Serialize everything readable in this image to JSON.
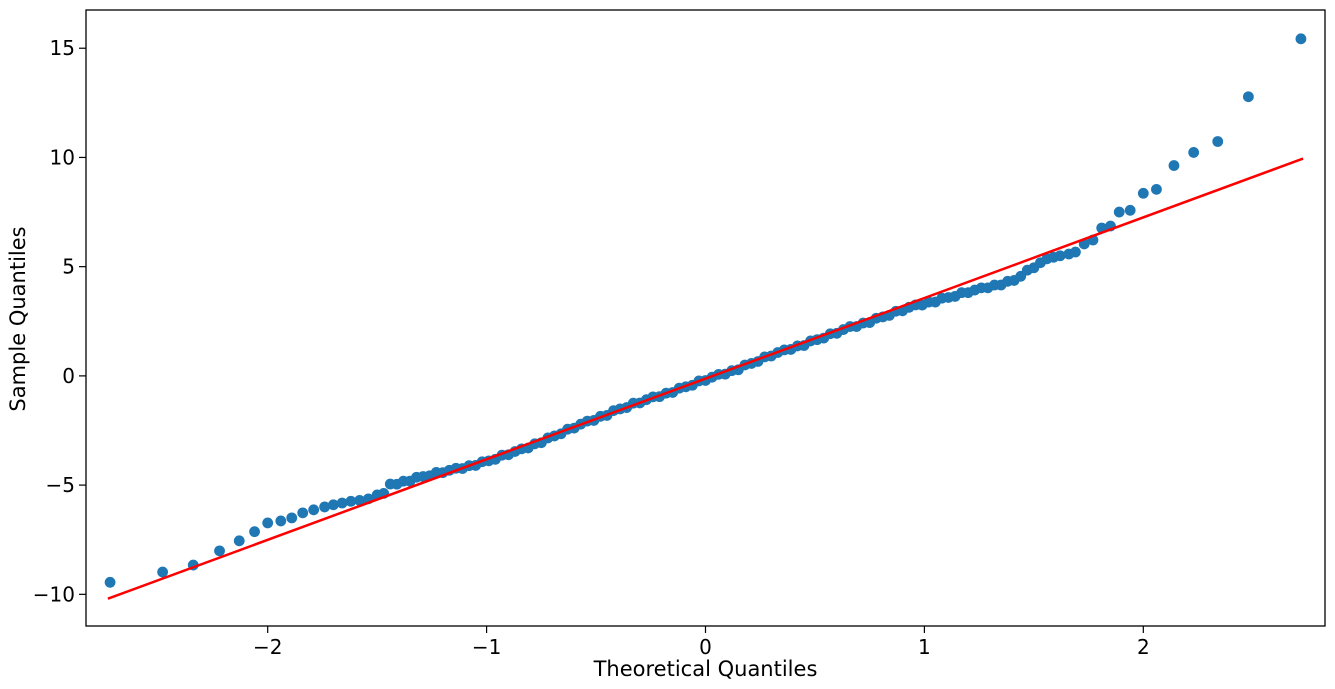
{
  "figure": {
    "background": "#ffffff"
  },
  "chart_data": {
    "type": "scatter",
    "title": "",
    "xlabel": "Theoretical Quantiles",
    "ylabel": "Sample Quantiles",
    "xlim": [
      -2.83,
      2.83
    ],
    "ylim": [
      -11.45,
      16.75
    ],
    "grid": false,
    "legend": "none",
    "xticks": {
      "values": [
        -2,
        -1,
        0,
        1,
        2
      ],
      "labels": [
        "−2",
        "−1",
        "0",
        "1",
        "2"
      ]
    },
    "yticks": {
      "values": [
        -10,
        -5,
        0,
        5,
        10,
        15
      ],
      "labels": [
        "−10",
        "−5",
        "0",
        "5",
        "10",
        "15"
      ]
    },
    "colors": {
      "marker": "#1f77b4",
      "reference_line": "#ff0000",
      "axis": "#000000"
    },
    "reference_line": {
      "x1": -2.73,
      "y1": -10.2,
      "x2": 2.73,
      "y2": 9.95,
      "width": 2.5
    },
    "series": [
      {
        "name": "sample-quantiles-vs-theoretical",
        "type": "scatter",
        "color": "#1f77b4",
        "marker_radius": 5.4,
        "points": [
          [
            -2.72,
            -9.45
          ],
          [
            -2.48,
            -8.98
          ],
          [
            -2.34,
            -8.66
          ],
          [
            -2.22,
            -8.01
          ],
          [
            -2.13,
            -7.55
          ],
          [
            -2.06,
            -7.13
          ],
          [
            -2.0,
            -6.73
          ],
          [
            -1.94,
            -6.64
          ],
          [
            -1.89,
            -6.5
          ],
          [
            -1.84,
            -6.27
          ],
          [
            -1.79,
            -6.13
          ],
          [
            -1.74,
            -6.0
          ],
          [
            -1.7,
            -5.9
          ],
          [
            -1.66,
            -5.82
          ],
          [
            -1.62,
            -5.74
          ],
          [
            -1.58,
            -5.7
          ],
          [
            -1.54,
            -5.63
          ],
          [
            -1.5,
            -5.45
          ],
          [
            -1.47,
            -5.38
          ],
          [
            -1.44,
            -4.95
          ],
          [
            -1.41,
            -4.96
          ],
          [
            -1.38,
            -4.82
          ],
          [
            -1.35,
            -4.82
          ],
          [
            -1.32,
            -4.64
          ],
          [
            -1.29,
            -4.61
          ],
          [
            -1.26,
            -4.57
          ],
          [
            -1.23,
            -4.42
          ],
          [
            -1.2,
            -4.43
          ],
          [
            -1.17,
            -4.32
          ],
          [
            -1.14,
            -4.23
          ],
          [
            -1.11,
            -4.24
          ],
          [
            -1.08,
            -4.11
          ],
          [
            -1.05,
            -4.1
          ],
          [
            -1.02,
            -3.93
          ],
          [
            -0.99,
            -3.89
          ],
          [
            -0.96,
            -3.82
          ],
          [
            -0.93,
            -3.63
          ],
          [
            -0.9,
            -3.61
          ],
          [
            -0.87,
            -3.46
          ],
          [
            -0.84,
            -3.34
          ],
          [
            -0.81,
            -3.3
          ],
          [
            -0.78,
            -3.11
          ],
          [
            -0.75,
            -3.06
          ],
          [
            -0.72,
            -2.84
          ],
          [
            -0.69,
            -2.75
          ],
          [
            -0.66,
            -2.65
          ],
          [
            -0.63,
            -2.44
          ],
          [
            -0.6,
            -2.39
          ],
          [
            -0.57,
            -2.21
          ],
          [
            -0.54,
            -2.07
          ],
          [
            -0.51,
            -2.04
          ],
          [
            -0.48,
            -1.85
          ],
          [
            -0.45,
            -1.81
          ],
          [
            -0.42,
            -1.59
          ],
          [
            -0.39,
            -1.51
          ],
          [
            -0.36,
            -1.45
          ],
          [
            -0.33,
            -1.25
          ],
          [
            -0.3,
            -1.24
          ],
          [
            -0.27,
            -1.09
          ],
          [
            -0.24,
            -0.96
          ],
          [
            -0.21,
            -0.95
          ],
          [
            -0.18,
            -0.79
          ],
          [
            -0.15,
            -0.76
          ],
          [
            -0.12,
            -0.56
          ],
          [
            -0.09,
            -0.5
          ],
          [
            -0.06,
            -0.43
          ],
          [
            -0.03,
            -0.23
          ],
          [
            0.0,
            -0.21
          ],
          [
            0.03,
            -0.06
          ],
          [
            0.06,
            0.07
          ],
          [
            0.09,
            0.08
          ],
          [
            0.12,
            0.24
          ],
          [
            0.15,
            0.28
          ],
          [
            0.18,
            0.5
          ],
          [
            0.21,
            0.57
          ],
          [
            0.24,
            0.66
          ],
          [
            0.27,
            0.87
          ],
          [
            0.3,
            0.91
          ],
          [
            0.33,
            1.07
          ],
          [
            0.36,
            1.19
          ],
          [
            0.39,
            1.21
          ],
          [
            0.42,
            1.37
          ],
          [
            0.45,
            1.39
          ],
          [
            0.48,
            1.6
          ],
          [
            0.51,
            1.66
          ],
          [
            0.54,
            1.73
          ],
          [
            0.57,
            1.93
          ],
          [
            0.6,
            1.95
          ],
          [
            0.63,
            2.12
          ],
          [
            0.66,
            2.26
          ],
          [
            0.69,
            2.26
          ],
          [
            0.72,
            2.42
          ],
          [
            0.75,
            2.44
          ],
          [
            0.78,
            2.64
          ],
          [
            0.81,
            2.7
          ],
          [
            0.84,
            2.77
          ],
          [
            0.87,
            2.96
          ],
          [
            0.9,
            2.98
          ],
          [
            0.93,
            3.14
          ],
          [
            0.96,
            3.25
          ],
          [
            0.99,
            3.24
          ],
          [
            1.02,
            3.38
          ],
          [
            1.05,
            3.38
          ],
          [
            1.08,
            3.56
          ],
          [
            1.11,
            3.59
          ],
          [
            1.14,
            3.64
          ],
          [
            1.17,
            3.81
          ],
          [
            1.2,
            3.81
          ],
          [
            1.23,
            3.93
          ],
          [
            1.26,
            4.03
          ],
          [
            1.29,
            4.03
          ],
          [
            1.32,
            4.16
          ],
          [
            1.35,
            4.16
          ],
          [
            1.38,
            4.33
          ],
          [
            1.41,
            4.37
          ],
          [
            1.44,
            4.56
          ],
          [
            1.47,
            4.84
          ],
          [
            1.5,
            4.95
          ],
          [
            1.53,
            5.18
          ],
          [
            1.56,
            5.36
          ],
          [
            1.59,
            5.43
          ],
          [
            1.62,
            5.5
          ],
          [
            1.66,
            5.58
          ],
          [
            1.69,
            5.67
          ],
          [
            1.73,
            6.04
          ],
          [
            1.77,
            6.22
          ],
          [
            1.81,
            6.77
          ],
          [
            1.85,
            6.86
          ],
          [
            1.89,
            7.5
          ],
          [
            1.94,
            7.58
          ],
          [
            2.0,
            8.36
          ],
          [
            2.06,
            8.54
          ],
          [
            2.14,
            9.63
          ],
          [
            2.23,
            10.23
          ],
          [
            2.34,
            10.73
          ],
          [
            2.48,
            12.78
          ],
          [
            2.72,
            15.43
          ]
        ]
      }
    ]
  }
}
